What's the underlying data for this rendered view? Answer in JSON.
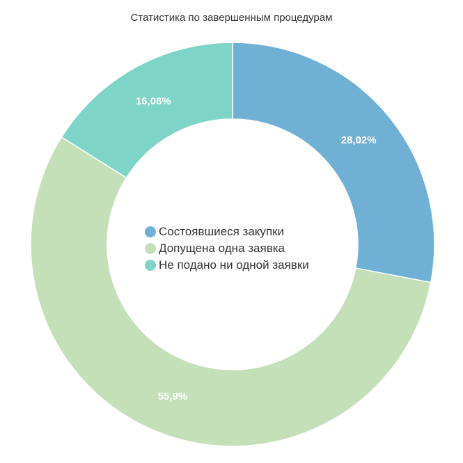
{
  "chart_data": {
    "type": "pie",
    "variant": "donut",
    "title": "Статистика по завершенным процедурам",
    "slices": [
      {
        "name": "Состоявшиеся закупки",
        "value": 28.02,
        "label": "28,02%",
        "color": "#6fb0d4"
      },
      {
        "name": "Допущена одна заявка",
        "value": 55.9,
        "label": "55,9%",
        "color": "#c4e0b8"
      },
      {
        "name": "Не подано ни одной заявки",
        "value": 16.08,
        "label": "16,08%",
        "color": "#7dd4c7"
      }
    ],
    "legend_position": "center"
  }
}
